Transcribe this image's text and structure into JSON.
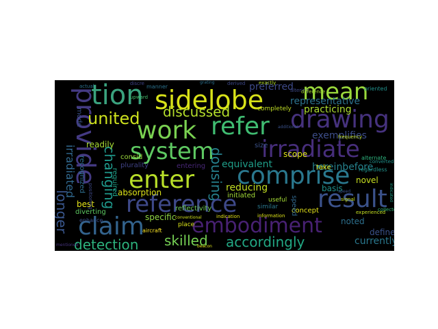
{
  "words": [
    {
      "text": "tion",
      "color": "#3aa27e",
      "size": 40,
      "vertical": false
    },
    {
      "text": "sidelobe",
      "color": "#d8e219",
      "size": 38,
      "vertical": false
    },
    {
      "text": "mean",
      "color": "#9ad93c",
      "size": 34,
      "vertical": false
    },
    {
      "text": "provide",
      "color": "#443a83",
      "size": 38,
      "vertical": true
    },
    {
      "text": "refer",
      "color": "#40bd72",
      "size": 36,
      "vertical": false
    },
    {
      "text": "drawing",
      "color": "#46327e",
      "size": 36,
      "vertical": false
    },
    {
      "text": "work",
      "color": "#7ad151",
      "size": 36,
      "vertical": false
    },
    {
      "text": "united",
      "color": "#cde11d",
      "size": 24,
      "vertical": false
    },
    {
      "text": "discussed",
      "color": "#b5de2b",
      "size": 20,
      "vertical": false
    },
    {
      "text": "system",
      "color": "#5ec962",
      "size": 34,
      "vertical": false
    },
    {
      "text": "irradiate",
      "color": "#472e7c",
      "size": 34,
      "vertical": false
    },
    {
      "text": "comprise",
      "color": "#2a788e",
      "size": 36,
      "vertical": false
    },
    {
      "text": "enter",
      "color": "#b8de29",
      "size": 36,
      "vertical": false
    },
    {
      "text": "dousing",
      "color": "#26818e",
      "size": 20,
      "vertical": true
    },
    {
      "text": "changing",
      "color": "#1f988b",
      "size": 20,
      "vertical": true
    },
    {
      "text": "reference",
      "color": "#3e4989",
      "size": 34,
      "vertical": false
    },
    {
      "text": "result",
      "color": "#3b528b",
      "size": 36,
      "vertical": false
    },
    {
      "text": "claim",
      "color": "#33638d",
      "size": 36,
      "vertical": false
    },
    {
      "text": "embodiment",
      "color": "#482173",
      "size": 30,
      "vertical": false
    },
    {
      "text": "skilled",
      "color": "#75d054",
      "size": 20,
      "vertical": false
    },
    {
      "text": "accordingly",
      "color": "#22a884",
      "size": 20,
      "vertical": false
    },
    {
      "text": "detection",
      "color": "#2db27d",
      "size": 20,
      "vertical": false
    },
    {
      "text": "longer",
      "color": "#39568c",
      "size": 20,
      "vertical": true
    },
    {
      "text": "irradiated",
      "color": "#31688e",
      "size": 16,
      "vertical": true
    },
    {
      "text": "representative",
      "color": "#2c728e",
      "size": 14,
      "vertical": false
    },
    {
      "text": "preferred",
      "color": "#3e4a89",
      "size": 14,
      "vertical": false
    },
    {
      "text": "practicing",
      "color": "#addc30",
      "size": 14,
      "vertical": false
    },
    {
      "text": "exemplifies",
      "color": "#3d4e8a",
      "size": 14,
      "vertical": false
    },
    {
      "text": "equivalent",
      "color": "#1f9e89",
      "size": 14,
      "vertical": false
    },
    {
      "text": "hereinbefore",
      "color": "#26828e",
      "size": 14,
      "vertical": false
    },
    {
      "text": "reducing",
      "color": "#c2df23",
      "size": 14,
      "vertical": false
    },
    {
      "text": "absorption",
      "color": "#dde318",
      "size": 12,
      "vertical": false
    },
    {
      "text": "specific",
      "color": "#90d743",
      "size": 12,
      "vertical": false
    },
    {
      "text": "readily",
      "color": "#a8db34",
      "size": 12,
      "vertical": false
    },
    {
      "text": "currently",
      "color": "#2a788e",
      "size": 14,
      "vertical": false
    },
    {
      "text": "define",
      "color": "#3b528b",
      "size": 12,
      "vertical": false
    },
    {
      "text": "noted",
      "color": "#2d708e",
      "size": 12,
      "vertical": false
    },
    {
      "text": "novel",
      "color": "#c8e020",
      "size": 12,
      "vertical": false
    },
    {
      "text": "concept",
      "color": "#e5e419",
      "size": 10,
      "vertical": false
    },
    {
      "text": "basis",
      "color": "#21918c",
      "size": 12,
      "vertical": false
    },
    {
      "text": "scope",
      "color": "#dde318",
      "size": 12,
      "vertical": false
    },
    {
      "text": "size",
      "color": "#3b528b",
      "size": 10,
      "vertical": false
    },
    {
      "text": "best",
      "color": "#e5e419",
      "size": 12,
      "vertical": false
    },
    {
      "text": "diverting",
      "color": "#5ec962",
      "size": 10,
      "vertical": false
    },
    {
      "text": "reflectivity",
      "color": "#6ece58",
      "size": 10,
      "vertical": false
    },
    {
      "text": "initiated",
      "color": "#a2da37",
      "size": 10,
      "vertical": false
    },
    {
      "text": "required",
      "color": "#1fa188",
      "size": 10,
      "vertical": true
    },
    {
      "text": "consid",
      "color": "#9bd93c",
      "size": 10,
      "vertical": false
    },
    {
      "text": "completely",
      "color": "#c0df25",
      "size": 9,
      "vertical": false
    },
    {
      "text": "entering",
      "color": "#482878",
      "size": 10,
      "vertical": false
    },
    {
      "text": "recognized",
      "color": "#2e6e8e",
      "size": 10,
      "vertical": true
    },
    {
      "text": "mode",
      "color": "#3b528b",
      "size": 10,
      "vertical": true
    },
    {
      "text": "plurality",
      "color": "#404387",
      "size": 10,
      "vertical": false
    },
    {
      "text": "take",
      "color": "#e5e419",
      "size": 10,
      "vertical": false
    },
    {
      "text": "speed",
      "color": "#31688e",
      "size": 10,
      "vertical": true
    },
    {
      "text": "similar",
      "color": "#2a788e",
      "size": 9,
      "vertical": false
    },
    {
      "text": "useful",
      "color": "#a5db36",
      "size": 9,
      "vertical": false
    },
    {
      "text": "experienced",
      "color": "#c5e021",
      "size": 7,
      "vertical": false
    },
    {
      "text": "alternate",
      "color": "#2db27d",
      "size": 8,
      "vertical": false
    },
    {
      "text": "regardless",
      "color": "#20928c",
      "size": 8,
      "vertical": false
    },
    {
      "text": "frequency",
      "color": "#c2df23",
      "size": 7,
      "vertical": false
    },
    {
      "text": "oriented",
      "color": "#21918c",
      "size": 8,
      "vertical": false
    },
    {
      "text": "altering",
      "color": "#3e4a89",
      "size": 7,
      "vertical": false
    },
    {
      "text": "exactly",
      "color": "#b5de2b",
      "size": 7,
      "vertical": false
    },
    {
      "text": "difference",
      "color": "#a8db34",
      "size": 7,
      "vertical": false
    },
    {
      "text": "aircraft",
      "color": "#fde725",
      "size": 8,
      "vertical": false
    },
    {
      "text": "enhance",
      "color": "#3b528b",
      "size": 8,
      "vertical": false
    },
    {
      "text": "place",
      "color": "#d8e219",
      "size": 9,
      "vertical": false
    },
    {
      "text": "information",
      "color": "#dde318",
      "size": 7,
      "vertical": false
    },
    {
      "text": "indication",
      "color": "#e5e419",
      "size": 7,
      "vertical": false
    },
    {
      "text": "collected",
      "color": "#35b779",
      "size": 7,
      "vertical": false
    },
    {
      "text": "converted",
      "color": "#20928c",
      "size": 7,
      "vertical": false
    },
    {
      "text": "signal",
      "color": "#c8e020",
      "size": 7,
      "vertical": false
    },
    {
      "text": "manner",
      "color": "#2c728e",
      "size": 8,
      "vertical": false
    },
    {
      "text": "upward",
      "color": "#46c06f",
      "size": 7,
      "vertical": false
    },
    {
      "text": "derived",
      "color": "#3e4989",
      "size": 7,
      "vertical": false
    },
    {
      "text": "positioning",
      "color": "#3e4989",
      "size": 7,
      "vertical": true
    },
    {
      "text": "grating",
      "color": "#2d708e",
      "size": 6,
      "vertical": false
    },
    {
      "text": "discre",
      "color": "#404387",
      "size": 7,
      "vertical": false
    },
    {
      "text": "actual",
      "color": "#2c728e",
      "size": 7,
      "vertical": false
    },
    {
      "text": "additional",
      "color": "#3b528b",
      "size": 6,
      "vertical": false
    },
    {
      "text": "conventional",
      "color": "#d2e21b",
      "size": 6,
      "vertical": false
    },
    {
      "text": "mentioned",
      "color": "#46337e",
      "size": 6,
      "vertical": false
    },
    {
      "text": "beacon",
      "color": "#dde318",
      "size": 6,
      "vertical": false
    },
    {
      "text": "speed",
      "color": "#3b528b",
      "size": 6,
      "vertical": false
    },
    {
      "text": "indicated",
      "color": "#1fa188",
      "size": 6,
      "vertical": true
    }
  ]
}
